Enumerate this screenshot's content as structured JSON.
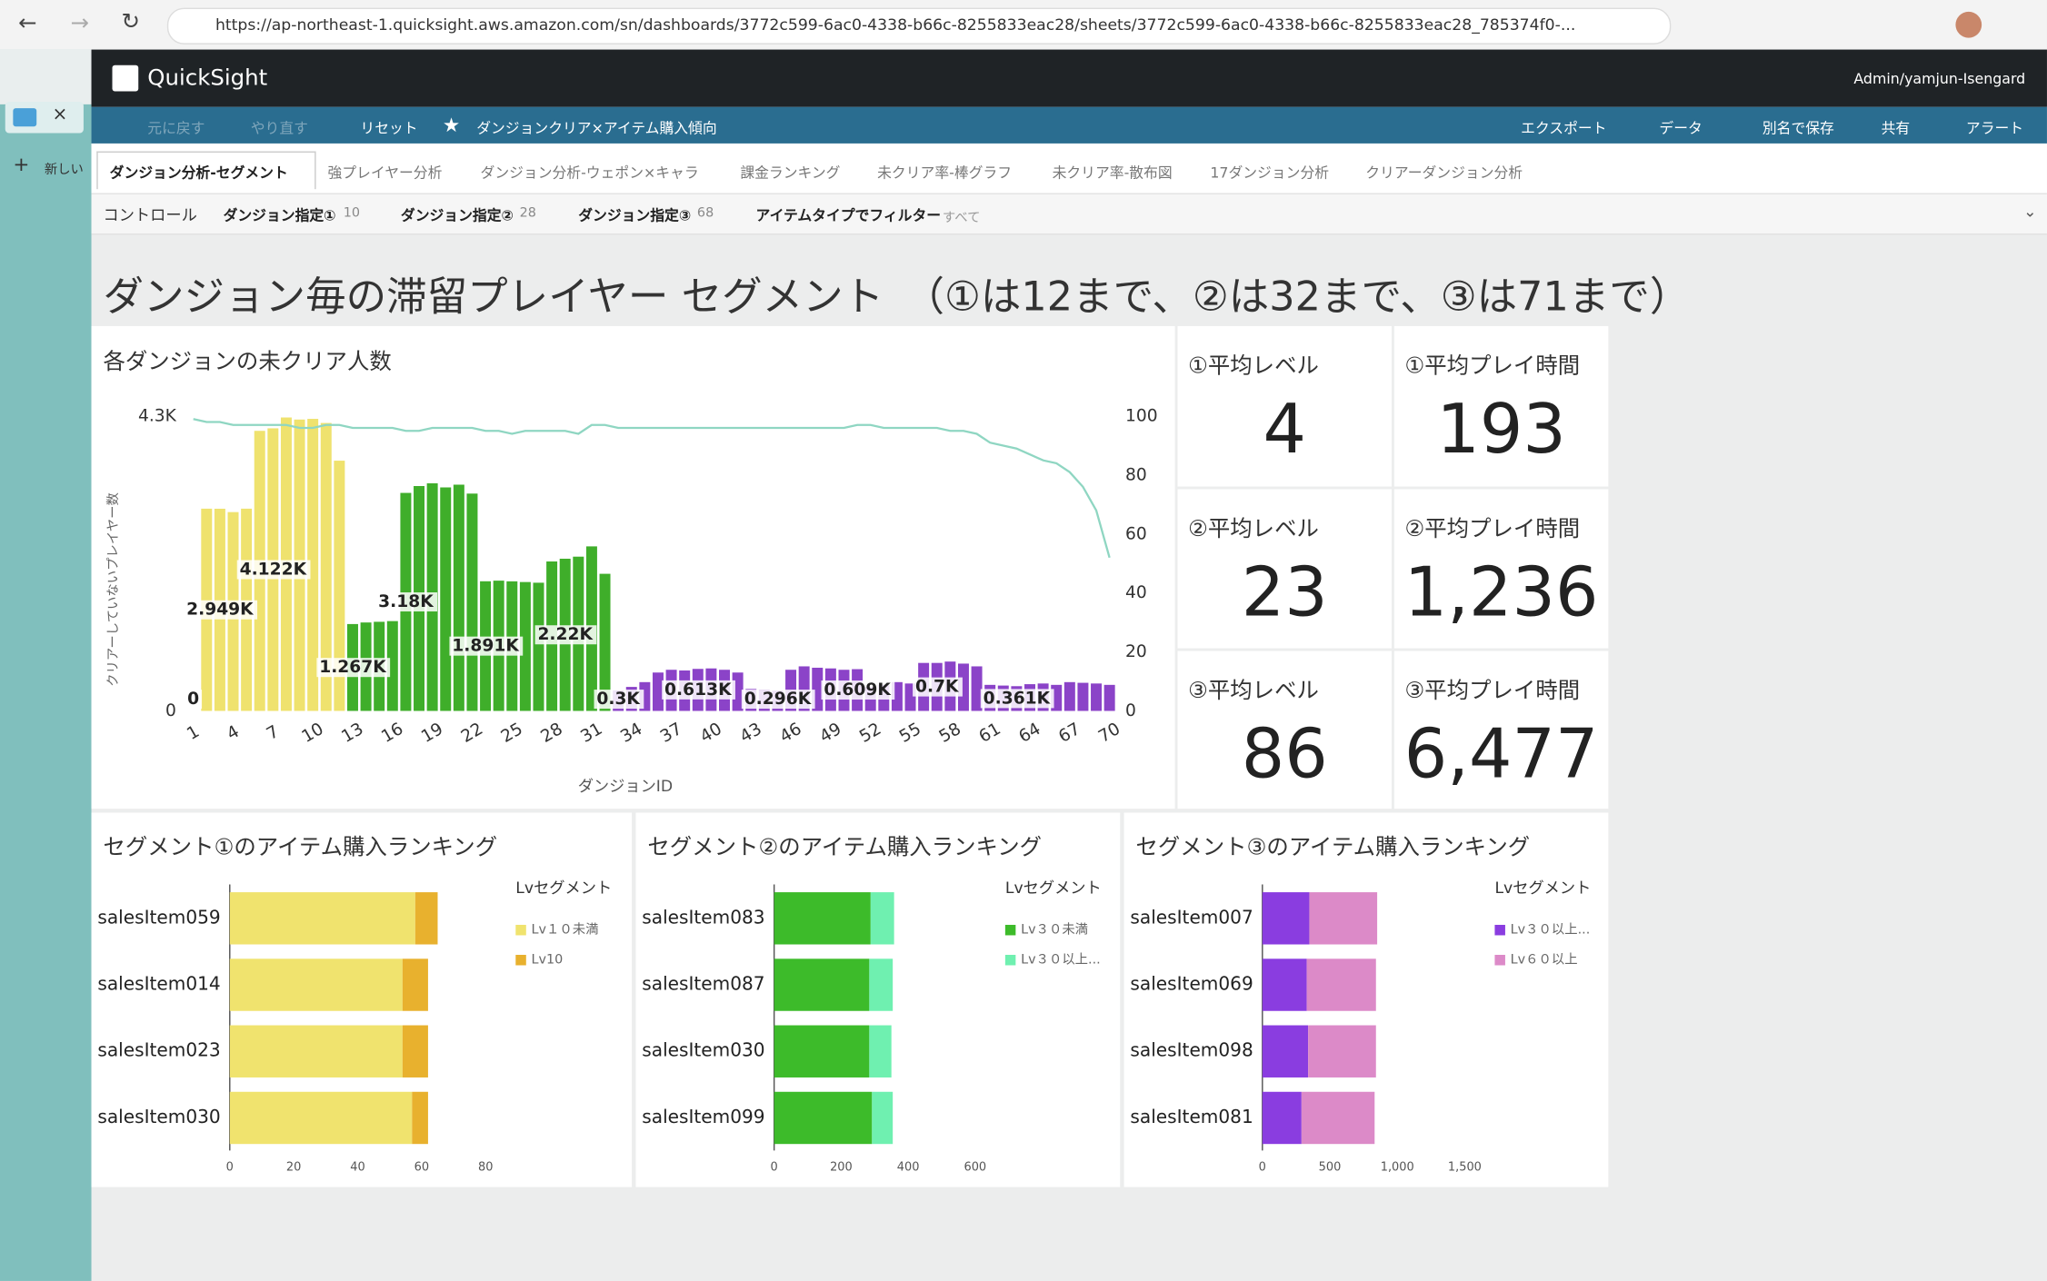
{
  "browser": {
    "url": "https://ap-northeast-1.quicksight.aws.amazon.com/sn/dashboards/3772c599-6ac0-4338-b66c-8255833eac28/sheets/3772c599-6ac0-4338-b66c-8255833eac28_785374f0-..."
  },
  "sidebar": {
    "new": "新しい"
  },
  "header": {
    "brand": "QuickSight",
    "user": "Admin/yamjun-Isengard"
  },
  "toolbar": {
    "undo": "元に戻す",
    "redo": "やり直す",
    "reset": "リセット",
    "dashboard_name": "ダンジョンクリア×アイテム購入傾向",
    "export": "エクスポート",
    "data": "データ",
    "save_as": "別名で保存",
    "share": "共有",
    "alert": "アラート"
  },
  "tabs": [
    "ダンジョン分析-セグメント",
    "強プレイヤー分析",
    "ダンジョン分析-ウェポン×キャラ",
    "課金ランキング",
    "未クリア率-棒グラフ",
    "未クリア率-散布図",
    "17ダンジョン分析",
    "クリアーダンジョン分析"
  ],
  "controls": {
    "label": "コントロール",
    "items": [
      {
        "name": "ダンジョン指定①",
        "value": "10"
      },
      {
        "name": "ダンジョン指定②",
        "value": "28"
      },
      {
        "name": "ダンジョン指定③",
        "value": "68"
      },
      {
        "name": "アイテムタイプでフィルター",
        "value": "すべて"
      }
    ]
  },
  "sheet_title": "ダンジョン毎の滞留プレイヤー セグメント　（①は12まで、②は32まで、③は71まで）",
  "kpis": [
    {
      "label": "①平均レベル",
      "value": "4"
    },
    {
      "label": "①平均プレイ時間",
      "value": "193"
    },
    {
      "label": "②平均レベル",
      "value": "23"
    },
    {
      "label": "②平均プレイ時間",
      "value": "1,236"
    },
    {
      "label": "③平均レベル",
      "value": "86"
    },
    {
      "label": "③平均プレイ時間",
      "value": "6,477"
    }
  ],
  "chart_data": [
    {
      "type": "combo",
      "title": "各ダンジョンの未クリア人数",
      "x_label": "ダンジョンID",
      "y_label": "クリアーしていないプレイヤー数",
      "categories": [
        1,
        null,
        null,
        4,
        null,
        null,
        7,
        null,
        null,
        10,
        null,
        null,
        13,
        null,
        null,
        16,
        null,
        null,
        19,
        null,
        null,
        22,
        null,
        null,
        25,
        null,
        null,
        28,
        null,
        null,
        31,
        null,
        null,
        34,
        null,
        null,
        37,
        null,
        null,
        40,
        null,
        null,
        43,
        null,
        null,
        46,
        null,
        null,
        49,
        null,
        null,
        52,
        null,
        null,
        55,
        null,
        null,
        58,
        null,
        null,
        61,
        null,
        null,
        64,
        null,
        null,
        67,
        null,
        null,
        70
      ],
      "series": [
        {
          "values": [
            0,
            2950,
            2949,
            2900,
            2950,
            4085,
            4122,
            4280,
            4250,
            4260,
            4200,
            3650,
            1267,
            1290,
            1300,
            1310,
            3180,
            3280,
            3320,
            3260,
            3300,
            3170,
            1891,
            1900,
            1890,
            1880,
            1870,
            2180,
            2220,
            2250,
            2400,
            2000,
            300,
            350,
            420,
            560,
            600,
            590,
            613,
            620,
            600,
            560,
            320,
            310,
            296,
            600,
            650,
            630,
            620,
            600,
            609,
            350,
            380,
            420,
            400,
            700,
            700,
            720,
            690,
            650,
            380,
            370,
            361,
            390,
            400,
            380,
            420,
            410,
            400,
            380
          ],
          "value_labels": [
            "0",
            null,
            "2.949K",
            null,
            null,
            null,
            "4.122K",
            null,
            null,
            null,
            null,
            null,
            "1.267K",
            null,
            null,
            null,
            "3.18K",
            null,
            null,
            null,
            null,
            null,
            "1.891K",
            null,
            null,
            null,
            null,
            null,
            "2.22K",
            null,
            null,
            null,
            "0.3K",
            null,
            null,
            null,
            null,
            null,
            "0.613K",
            null,
            null,
            null,
            null,
            null,
            "0.296K",
            null,
            null,
            null,
            null,
            null,
            "0.609K",
            null,
            null,
            null,
            null,
            null,
            "0.7K",
            null,
            null,
            null,
            null,
            null,
            "0.361K",
            null,
            null,
            null,
            null,
            null,
            null,
            null
          ],
          "colors": [
            "#efe26e",
            "#efe26e",
            "#efe26e",
            "#efe26e",
            "#efe26e",
            "#efe26e",
            "#efe26e",
            "#efe26e",
            "#efe26e",
            "#efe26e",
            "#efe26e",
            "#efe26e",
            "#3fae2a",
            "#3fae2a",
            "#3fae2a",
            "#3fae2a",
            "#3fae2a",
            "#3fae2a",
            "#3fae2a",
            "#3fae2a",
            "#3fae2a",
            "#3fae2a",
            "#3fae2a",
            "#3fae2a",
            "#3fae2a",
            "#3fae2a",
            "#3fae2a",
            "#3fae2a",
            "#3fae2a",
            "#3fae2a",
            "#3fae2a",
            "#3fae2a",
            "#8b43c8",
            "#8b43c8",
            "#8b43c8",
            "#8b43c8",
            "#8b43c8",
            "#8b43c8",
            "#8b43c8",
            "#8b43c8",
            "#8b43c8",
            "#8b43c8",
            "#8b43c8",
            "#8b43c8",
            "#8b43c8",
            "#8b43c8",
            "#8b43c8",
            "#8b43c8",
            "#8b43c8",
            "#8b43c8",
            "#8b43c8",
            "#8b43c8",
            "#8b43c8",
            "#8b43c8",
            "#8b43c8",
            "#8b43c8",
            "#8b43c8",
            "#8b43c8",
            "#8b43c8",
            "#8b43c8",
            "#8b43c8",
            "#8b43c8",
            "#8b43c8",
            "#8b43c8",
            "#8b43c8",
            "#8b43c8",
            "#8b43c8",
            "#8b43c8",
            "#8b43c8",
            "#8b43c8"
          ]
        },
        {
          "type": "line",
          "axis": "y2",
          "color": "#8fd6c2",
          "values": [
            99,
            98,
            98,
            97,
            97,
            97,
            97,
            97,
            96,
            96,
            97,
            97,
            96,
            96,
            96,
            96,
            95,
            95,
            96,
            96,
            96,
            96,
            95,
            95,
            94,
            95,
            95,
            95,
            95,
            94,
            97,
            97,
            96,
            96,
            96,
            96,
            96,
            96,
            96,
            96,
            96,
            96,
            96,
            96,
            96,
            96,
            96,
            96,
            96,
            96,
            97,
            97,
            96,
            96,
            96,
            96,
            96,
            95,
            95,
            94,
            91,
            90,
            89,
            87,
            85,
            84,
            81,
            76,
            68,
            52
          ]
        }
      ],
      "ylim": [
        0,
        4300
      ],
      "yticks": [
        0,
        {
          "value": 4300,
          "label": "4.3K"
        }
      ],
      "y2lim": [
        0,
        100
      ],
      "y2ticks": [
        0,
        20,
        40,
        60,
        80,
        100
      ]
    },
    {
      "type": "bar",
      "horizontal": true,
      "stacked": true,
      "title": "セグメント①のアイテム購入ランキング",
      "categories": [
        "salesItem059",
        "salesItem014",
        "salesItem023",
        "salesItem030"
      ],
      "legend_title": "Lvセグメント",
      "series": [
        {
          "name": "Lv１０未満",
          "color": "#f0e36e",
          "values": [
            58,
            54,
            54,
            57
          ]
        },
        {
          "name": "Lv10",
          "color": "#e8b12e",
          "values": [
            7,
            8,
            8,
            5
          ]
        }
      ],
      "xlim": [
        0,
        80
      ],
      "xticks": [
        0,
        20,
        40,
        60,
        80
      ]
    },
    {
      "type": "bar",
      "horizontal": true,
      "stacked": true,
      "title": "セグメント②のアイテム購入ランキング",
      "categories": [
        "salesItem083",
        "salesItem087",
        "salesItem030",
        "salesItem099"
      ],
      "legend_title": "Lvセグメント",
      "series": [
        {
          "name": "Lv３０未満",
          "color": "#3dbb2a",
          "values": [
            288,
            284,
            284,
            292
          ]
        },
        {
          "name": "Lv３０以上...",
          "color": "#6ff0b0",
          "values": [
            70,
            70,
            66,
            62
          ]
        }
      ],
      "xlim": [
        0,
        600
      ],
      "xticks": [
        0,
        200,
        400,
        600
      ]
    },
    {
      "type": "bar",
      "horizontal": true,
      "stacked": true,
      "title": "セグメント③のアイテム購入ランキング",
      "categories": [
        "salesItem007",
        "salesItem069",
        "salesItem098",
        "salesItem081"
      ],
      "legend_title": "Lvセグメント",
      "series": [
        {
          "name": "Lv３０以上...",
          "color": "#8a3de0",
          "values": [
            348,
            329,
            339,
            290
          ]
        },
        {
          "name": "Lv６０以上",
          "color": "#dc8ac8",
          "values": [
            503,
            513,
            503,
            542
          ]
        }
      ],
      "xlim": [
        0,
        1500
      ],
      "xticks": [
        0,
        500,
        {
          "value": 1000,
          "label": "1,000"
        },
        {
          "value": 1500,
          "label": "1,500"
        }
      ]
    }
  ]
}
